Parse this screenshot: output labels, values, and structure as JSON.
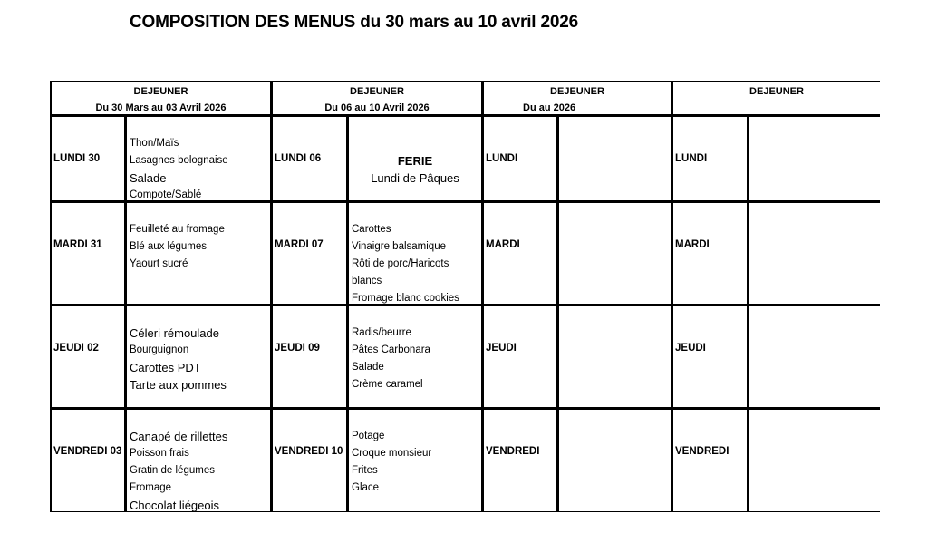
{
  "title": "COMPOSITION DES MENUS du 30 mars au 10 avril 2026",
  "headers": [
    {
      "label": "DEJEUNER",
      "period": "Du 30 Mars au 03 Avril 2026"
    },
    {
      "label": "DEJEUNER",
      "period": "Du 06 au 10 Avril 2026"
    },
    {
      "label": "DEJEUNER",
      "period": "Du au  2026"
    },
    {
      "label": "DEJEUNER",
      "period": ""
    }
  ],
  "rows": [
    {
      "w1_day": "LUNDI 30",
      "w1_items": [
        "Thon/Maïs",
        "Lasagnes bolognaise",
        "Salade",
        "Compote/Sablé"
      ],
      "w2_day": "LUNDI 06",
      "w2_ferie": "FERIE",
      "w2_ferie_sub": "Lundi de Pâques",
      "w3_day": "LUNDI",
      "w4_day": "LUNDI"
    },
    {
      "w1_day": "MARDI 31",
      "w1_items": [
        "Feuilleté au fromage",
        "Blé aux légumes",
        "Yaourt sucré"
      ],
      "w2_day": "MARDI 07",
      "w2_items": [
        "Carottes",
        "Vinaigre balsamique",
        "Rôti de porc/Haricots",
        "blancs",
        "Fromage blanc cookies"
      ],
      "w3_day": "MARDI",
      "w4_day": "MARDI"
    },
    {
      "w1_day": "JEUDI 02",
      "w1_items": [
        "Céleri rémoulade",
        "Bourguignon",
        "Carottes PDT",
        "Tarte aux pommes"
      ],
      "w2_day": "JEUDI 09",
      "w2_items": [
        "Radis/beurre",
        "Pâtes Carbonara",
        "Salade",
        "Crème caramel"
      ],
      "w3_day": "JEUDI",
      "w4_day": "JEUDI"
    },
    {
      "w1_day": "VENDREDI 03",
      "w1_items": [
        "Canapé de rillettes",
        "Poisson frais",
        "Gratin de légumes",
        "Fromage",
        "Chocolat liégeois"
      ],
      "w2_day": "VENDREDI 10",
      "w2_items": [
        "Potage",
        "Croque monsieur",
        "Frites",
        "Glace"
      ],
      "w3_day": "VENDREDI",
      "w4_day": "VENDREDI"
    }
  ]
}
